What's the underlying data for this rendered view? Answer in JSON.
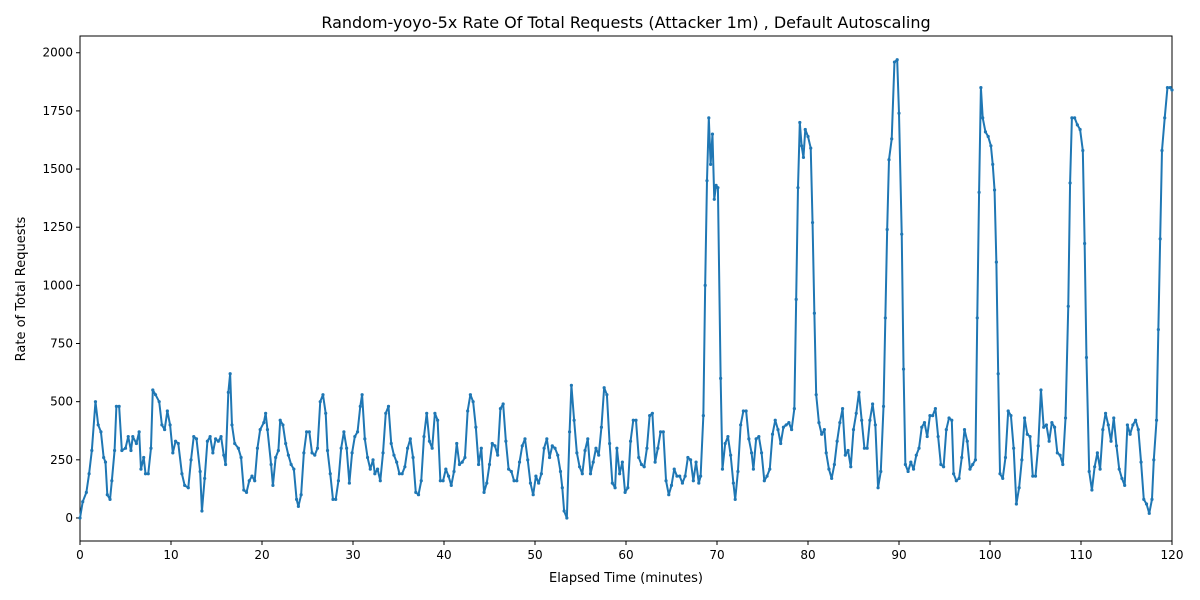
{
  "chart_data": {
    "type": "line",
    "title": "Random-yoyo-5x Rate Of Total Requests (Attacker 1m) , Default Autoscaling",
    "x_label": "Elapsed Time (minutes)",
    "y_label": "Rate of Total Requests",
    "xlim": [
      0,
      120
    ],
    "ylim": [
      -99,
      2072
    ],
    "xticks": [
      0,
      10,
      20,
      30,
      40,
      50,
      60,
      70,
      80,
      90,
      100,
      110,
      120
    ],
    "yticks": [
      0,
      250,
      500,
      750,
      1000,
      1250,
      1500,
      1750,
      2000
    ],
    "grid": false,
    "series": [
      {
        "color": "#1f77b4",
        "x": [
          0,
          0.3,
          0.7,
          1,
          1.3,
          1.7,
          2,
          2.3,
          2.6,
          2.8,
          3,
          3.3,
          3.5,
          3.8,
          4,
          4.3,
          4.6,
          5,
          5.3,
          5.6,
          5.8,
          6.2,
          6.5,
          6.7,
          7,
          7.2,
          7.5,
          7.8,
          8,
          8.3,
          8.7,
          9,
          9.3,
          9.6,
          9.9,
          10.2,
          10.5,
          10.8,
          11.2,
          11.5,
          11.9,
          12.2,
          12.5,
          12.8,
          13.2,
          13.4,
          13.7,
          14,
          14.3,
          14.6,
          14.9,
          15.2,
          15.5,
          15.8,
          16,
          16.3,
          16.5,
          16.7,
          17,
          17.4,
          17.7,
          18,
          18.3,
          18.6,
          18.9,
          19.2,
          19.5,
          19.8,
          20.2,
          20.4,
          20.6,
          21,
          21.2,
          21.5,
          21.8,
          22,
          22.3,
          22.6,
          22.9,
          23.2,
          23.5,
          23.8,
          24,
          24.3,
          24.6,
          24.9,
          25.2,
          25.5,
          25.8,
          26.1,
          26.4,
          26.7,
          27,
          27.2,
          27.5,
          27.8,
          28.1,
          28.4,
          28.7,
          29,
          29.3,
          29.6,
          29.9,
          30.2,
          30.5,
          30.8,
          31,
          31.3,
          31.6,
          31.9,
          32.2,
          32.4,
          32.7,
          33,
          33.3,
          33.6,
          33.9,
          34.2,
          34.5,
          34.8,
          35.1,
          35.4,
          35.7,
          36,
          36.3,
          36.6,
          36.9,
          37.2,
          37.5,
          37.8,
          38.1,
          38.4,
          38.7,
          39,
          39.3,
          39.6,
          39.9,
          40.2,
          40.5,
          40.8,
          41.1,
          41.4,
          41.7,
          42,
          42.3,
          42.6,
          42.9,
          43.2,
          43.5,
          43.8,
          44.1,
          44.4,
          44.7,
          45,
          45.3,
          45.6,
          45.9,
          46.2,
          46.5,
          46.8,
          47.1,
          47.4,
          47.7,
          48,
          48.3,
          48.6,
          48.9,
          49.2,
          49.5,
          49.8,
          50.1,
          50.4,
          50.7,
          51,
          51.3,
          51.6,
          51.9,
          52.2,
          52.5,
          52.8,
          53,
          53.2,
          53.5,
          53.8,
          54,
          54.3,
          54.6,
          54.9,
          55.2,
          55.5,
          55.8,
          56.1,
          56.4,
          56.7,
          57,
          57.3,
          57.6,
          57.9,
          58.2,
          58.5,
          58.8,
          59,
          59.3,
          59.6,
          59.9,
          60.2,
          60.5,
          60.8,
          61.1,
          61.4,
          61.7,
          62,
          62.3,
          62.6,
          62.9,
          63.2,
          63.5,
          63.8,
          64.1,
          64.4,
          64.7,
          65,
          65.3,
          65.6,
          65.9,
          66.2,
          66.5,
          66.8,
          67.1,
          67.4,
          67.7,
          68,
          68.2,
          68.5,
          68.7,
          68.9,
          69.1,
          69.3,
          69.5,
          69.7,
          69.9,
          70.1,
          70.4,
          70.6,
          70.9,
          71.2,
          71.5,
          71.8,
          72,
          72.3,
          72.6,
          72.9,
          73.2,
          73.5,
          73.8,
          74,
          74.3,
          74.6,
          74.9,
          75.2,
          75.5,
          75.8,
          76.1,
          76.4,
          76.7,
          77,
          77.3,
          77.6,
          77.9,
          78.2,
          78.5,
          78.7,
          78.9,
          79.1,
          79.3,
          79.5,
          79.7,
          80,
          80.3,
          80.5,
          80.7,
          80.9,
          81.2,
          81.5,
          81.8,
          82,
          82.3,
          82.6,
          82.9,
          83.2,
          83.5,
          83.8,
          84.1,
          84.4,
          84.7,
          85,
          85.3,
          85.6,
          85.9,
          86.2,
          86.5,
          86.8,
          87.1,
          87.4,
          87.7,
          88,
          88.3,
          88.5,
          88.7,
          88.9,
          89.2,
          89.5,
          89.8,
          90,
          90.3,
          90.5,
          90.7,
          91,
          91.3,
          91.6,
          91.9,
          92.2,
          92.5,
          92.8,
          93.1,
          93.4,
          93.7,
          94,
          94.3,
          94.6,
          94.9,
          95.2,
          95.5,
          95.8,
          96,
          96.3,
          96.6,
          96.9,
          97.2,
          97.5,
          97.8,
          98.1,
          98.4,
          98.6,
          98.8,
          99,
          99.2,
          99.5,
          99.8,
          100.1,
          100.3,
          100.5,
          100.7,
          100.9,
          101.1,
          101.4,
          101.7,
          102,
          102.3,
          102.6,
          102.9,
          103.2,
          103.5,
          103.8,
          104.1,
          104.4,
          104.7,
          105,
          105.3,
          105.6,
          105.9,
          106.2,
          106.5,
          106.8,
          107.1,
          107.4,
          107.7,
          108,
          108.3,
          108.6,
          108.8,
          109,
          109.3,
          109.6,
          109.9,
          110.2,
          110.4,
          110.6,
          110.9,
          111.2,
          111.5,
          111.8,
          112.1,
          112.4,
          112.7,
          113,
          113.3,
          113.6,
          113.9,
          114.2,
          114.5,
          114.8,
          115.1,
          115.4,
          115.7,
          116,
          116.3,
          116.6,
          116.9,
          117.2,
          117.5,
          117.8,
          118,
          118.3,
          118.5,
          118.7,
          118.9,
          119.2,
          119.5,
          119.8,
          120
        ],
        "values": [
          0,
          70,
          110,
          190,
          290,
          500,
          400,
          370,
          260,
          240,
          100,
          80,
          160,
          290,
          480,
          480,
          290,
          300,
          350,
          290,
          350,
          320,
          370,
          210,
          260,
          190,
          190,
          300,
          550,
          530,
          500,
          400,
          380,
          460,
          400,
          280,
          330,
          320,
          190,
          140,
          130,
          250,
          350,
          340,
          200,
          30,
          170,
          330,
          350,
          280,
          340,
          330,
          350,
          270,
          230,
          540,
          620,
          400,
          320,
          300,
          260,
          120,
          110,
          160,
          180,
          160,
          300,
          380,
          410,
          450,
          380,
          230,
          140,
          260,
          290,
          420,
          400,
          320,
          270,
          230,
          210,
          80,
          50,
          100,
          280,
          370,
          370,
          280,
          270,
          300,
          500,
          530,
          450,
          290,
          190,
          80,
          80,
          160,
          300,
          370,
          300,
          150,
          280,
          350,
          370,
          480,
          530,
          340,
          260,
          210,
          250,
          190,
          210,
          160,
          280,
          450,
          480,
          320,
          270,
          240,
          190,
          190,
          220,
          300,
          340,
          260,
          110,
          100,
          160,
          350,
          450,
          330,
          300,
          450,
          420,
          160,
          160,
          210,
          180,
          140,
          200,
          320,
          230,
          240,
          260,
          460,
          530,
          500,
          390,
          230,
          300,
          110,
          150,
          230,
          320,
          310,
          270,
          470,
          490,
          330,
          210,
          200,
          160,
          160,
          240,
          310,
          340,
          250,
          150,
          100,
          180,
          150,
          190,
          300,
          340,
          260,
          310,
          300,
          270,
          200,
          130,
          30,
          0,
          370,
          570,
          420,
          280,
          220,
          190,
          290,
          340,
          190,
          240,
          300,
          270,
          390,
          560,
          530,
          320,
          150,
          130,
          300,
          190,
          240,
          110,
          130,
          330,
          420,
          420,
          260,
          230,
          220,
          300,
          440,
          450,
          240,
          300,
          370,
          370,
          160,
          100,
          140,
          210,
          180,
          180,
          150,
          180,
          260,
          250,
          160,
          240,
          150,
          180,
          440,
          1000,
          1450,
          1720,
          1520,
          1650,
          1370,
          1430,
          1420,
          600,
          210,
          320,
          350,
          270,
          150,
          80,
          200,
          400,
          460,
          460,
          340,
          280,
          210,
          340,
          350,
          280,
          160,
          180,
          210,
          360,
          420,
          380,
          320,
          390,
          400,
          410,
          380,
          470,
          940,
          1420,
          1700,
          1600,
          1550,
          1670,
          1640,
          1590,
          1270,
          880,
          530,
          410,
          360,
          380,
          280,
          210,
          170,
          230,
          330,
          410,
          470,
          270,
          290,
          220,
          380,
          450,
          540,
          420,
          300,
          300,
          420,
          490,
          400,
          130,
          200,
          480,
          860,
          1240,
          1540,
          1630,
          1960,
          1970,
          1740,
          1220,
          640,
          230,
          200,
          240,
          210,
          270,
          300,
          390,
          410,
          350,
          440,
          440,
          470,
          350,
          230,
          220,
          380,
          430,
          420,
          190,
          160,
          170,
          260,
          380,
          330,
          210,
          230,
          250,
          860,
          1400,
          1850,
          1720,
          1660,
          1640,
          1600,
          1520,
          1410,
          1100,
          620,
          190,
          170,
          260,
          460,
          440,
          300,
          60,
          130,
          250,
          430,
          360,
          350,
          180,
          180,
          310,
          550,
          390,
          400,
          330,
          410,
          390,
          280,
          270,
          230,
          430,
          910,
          1440,
          1720,
          1720,
          1690,
          1670,
          1580,
          1180,
          690,
          200,
          120,
          220,
          280,
          210,
          380,
          450,
          400,
          330,
          430,
          310,
          210,
          170,
          140,
          400,
          360,
          400,
          420,
          380,
          240,
          80,
          60,
          20,
          80,
          250,
          420,
          810,
          1200,
          1580,
          1720,
          1850,
          1850,
          1840
        ]
      }
    ]
  }
}
